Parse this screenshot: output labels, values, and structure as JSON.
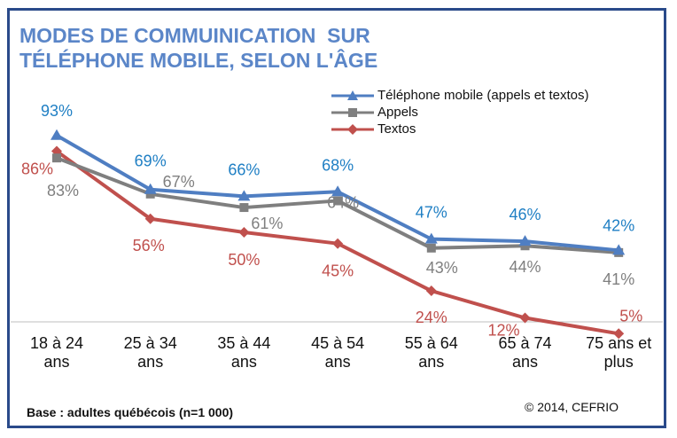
{
  "chart_data": {
    "type": "line",
    "title_lines": [
      "MODES DE COMMUINICATION  SUR",
      "TÉLÉPHONE MOBILE, SELON L'ÂGE"
    ],
    "categories": [
      [
        "18 à 24",
        "ans"
      ],
      [
        "25 à 34",
        "ans"
      ],
      [
        "35 à 44",
        "ans"
      ],
      [
        "45 à 54",
        "ans"
      ],
      [
        "55 à 64",
        "ans"
      ],
      [
        "65 à 74",
        "ans"
      ],
      [
        "75 ans et",
        "plus"
      ]
    ],
    "series": [
      {
        "name": "Téléphone mobile (appels et textos)",
        "color": "#4f7ec2",
        "marker": "triangle",
        "label_color": "#1f7fc4",
        "values": [
          93,
          69,
          66,
          68,
          47,
          46,
          42
        ],
        "labels": [
          "93%",
          "69%",
          "66%",
          "68%",
          "47%",
          "46%",
          "42%"
        ]
      },
      {
        "name": "Appels",
        "color": "#7f7f7f",
        "marker": "square",
        "label_color": "#7f7f7f",
        "values": [
          83,
          67,
          61,
          64,
          43,
          44,
          41
        ],
        "labels": [
          "83%",
          "67%",
          "61%",
          "64%",
          "43%",
          "44%",
          "41%"
        ]
      },
      {
        "name": "Textos",
        "color": "#c0504d",
        "marker": "diamond",
        "label_color": "#c0504d",
        "values": [
          86,
          56,
          50,
          45,
          24,
          12,
          5
        ],
        "labels": [
          "86%",
          "56%",
          "50%",
          "45%",
          "24%",
          "12%",
          "5%"
        ]
      }
    ],
    "ylim": [
      0,
      100
    ],
    "grid": false,
    "legend_position": "top-right"
  },
  "footnote": "Base : adultes québécois  (n=1 000)",
  "copyright": "© 2014, CEFRIO"
}
